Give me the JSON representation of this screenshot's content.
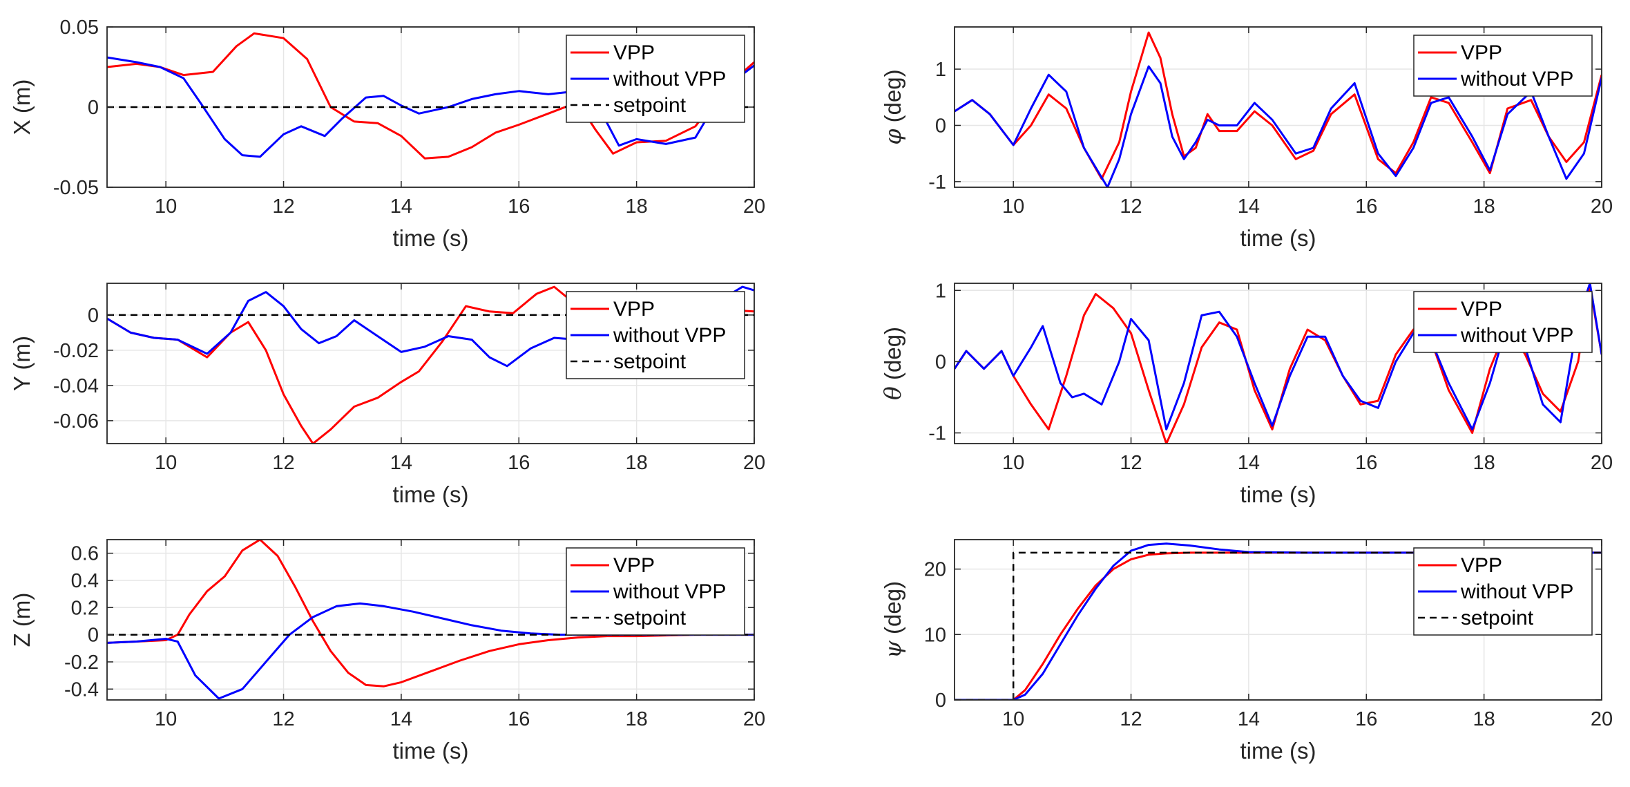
{
  "chart_data": [
    {
      "id": "x",
      "type": "line",
      "ylabel": "X (m)",
      "ylabel_symbol": "",
      "ylabel_unit": "",
      "xlabel": "time (s)",
      "xlim": [
        9,
        20
      ],
      "ylim": [
        -0.05,
        0.05
      ],
      "xticks": [
        10,
        12,
        14,
        16,
        18,
        20
      ],
      "xtick_labels": [
        "10",
        "12",
        "14",
        "16",
        "18",
        "20"
      ],
      "yticks": [
        -0.05,
        0,
        0.05
      ],
      "ytick_labels": [
        "-0.05",
        "0",
        "0.05"
      ],
      "legend": [
        "VPP",
        "without VPP",
        "setpoint"
      ],
      "series": [
        {
          "name": "VPP",
          "color": "#ff0000",
          "x": [
            9,
            9.5,
            9.9,
            10.3,
            10.8,
            11.2,
            11.5,
            12.0,
            12.4,
            12.8,
            13.2,
            13.6,
            14.0,
            14.4,
            14.8,
            15.2,
            15.6,
            16.0,
            16.5,
            17.0,
            17.3,
            17.6,
            18.0,
            18.5,
            19.0,
            19.5,
            20.0
          ],
          "y": [
            0.025,
            0.027,
            0.025,
            0.02,
            0.022,
            0.038,
            0.046,
            0.043,
            0.03,
            0.0,
            -0.009,
            -0.01,
            -0.018,
            -0.032,
            -0.031,
            -0.025,
            -0.016,
            -0.011,
            -0.004,
            0.003,
            -0.014,
            -0.029,
            -0.022,
            -0.021,
            -0.012,
            0.012,
            0.028
          ]
        },
        {
          "name": "without VPP",
          "color": "#0000ff",
          "x": [
            9,
            9.5,
            9.9,
            10.3,
            10.6,
            11.0,
            11.3,
            11.6,
            12.0,
            12.3,
            12.7,
            13.0,
            13.4,
            13.7,
            14.0,
            14.3,
            14.8,
            15.2,
            15.6,
            16.0,
            16.5,
            17.0,
            17.4,
            17.7,
            18.0,
            18.5,
            19.0,
            19.5,
            20.0
          ],
          "y": [
            0.031,
            0.028,
            0.025,
            0.018,
            0.002,
            -0.02,
            -0.03,
            -0.031,
            -0.017,
            -0.012,
            -0.018,
            -0.007,
            0.006,
            0.007,
            0.001,
            -0.004,
            0.0,
            0.005,
            0.008,
            0.01,
            0.008,
            0.01,
            -0.003,
            -0.024,
            -0.02,
            -0.023,
            -0.019,
            0.012,
            0.026
          ]
        },
        {
          "name": "setpoint",
          "color": "#000000",
          "dash": true,
          "x": [
            9,
            20
          ],
          "y": [
            0,
            0
          ]
        }
      ]
    },
    {
      "id": "phi",
      "type": "line",
      "ylabel": "",
      "ylabel_symbol": "φ",
      "ylabel_unit": " (deg)",
      "xlabel": "time (s)",
      "xlim": [
        9,
        20
      ],
      "ylim": [
        -1.1,
        1.75
      ],
      "xticks": [
        10,
        12,
        14,
        16,
        18,
        20
      ],
      "xtick_labels": [
        "10",
        "12",
        "14",
        "16",
        "18",
        "20"
      ],
      "yticks": [
        -1,
        0,
        1
      ],
      "ytick_labels": [
        "-1",
        "0",
        "1"
      ],
      "legend": [
        "VPP",
        "without VPP"
      ],
      "series": [
        {
          "name": "VPP",
          "color": "#ff0000",
          "x": [
            9,
            9.3,
            9.6,
            10.0,
            10.3,
            10.6,
            10.9,
            11.2,
            11.5,
            11.8,
            12.0,
            12.3,
            12.5,
            12.7,
            12.9,
            13.1,
            13.3,
            13.5,
            13.8,
            14.1,
            14.4,
            14.8,
            15.1,
            15.4,
            15.8,
            16.2,
            16.5,
            16.8,
            17.1,
            17.4,
            17.8,
            18.1,
            18.4,
            18.8,
            19.1,
            19.4,
            19.7,
            20.0
          ],
          "y": [
            0.25,
            0.45,
            0.2,
            -0.35,
            0.0,
            0.55,
            0.3,
            -0.4,
            -0.95,
            -0.3,
            0.6,
            1.65,
            1.2,
            0.2,
            -0.55,
            -0.4,
            0.2,
            -0.1,
            -0.1,
            0.25,
            0.0,
            -0.6,
            -0.45,
            0.2,
            0.55,
            -0.6,
            -0.85,
            -0.3,
            0.5,
            0.4,
            -0.3,
            -0.85,
            0.3,
            0.45,
            -0.2,
            -0.65,
            -0.3,
            0.9
          ]
        },
        {
          "name": "without VPP",
          "color": "#0000ff",
          "x": [
            9,
            9.3,
            9.6,
            10.0,
            10.3,
            10.6,
            10.9,
            11.2,
            11.6,
            11.8,
            12.0,
            12.3,
            12.5,
            12.7,
            12.9,
            13.1,
            13.3,
            13.5,
            13.8,
            14.1,
            14.4,
            14.8,
            15.1,
            15.4,
            15.8,
            16.2,
            16.5,
            16.8,
            17.1,
            17.4,
            17.8,
            18.1,
            18.4,
            18.8,
            19.1,
            19.4,
            19.7,
            20.0
          ],
          "y": [
            0.25,
            0.45,
            0.2,
            -0.35,
            0.3,
            0.9,
            0.6,
            -0.4,
            -1.1,
            -0.6,
            0.2,
            1.05,
            0.75,
            -0.2,
            -0.6,
            -0.3,
            0.1,
            0.0,
            0.0,
            0.4,
            0.1,
            -0.5,
            -0.4,
            0.3,
            0.75,
            -0.5,
            -0.9,
            -0.4,
            0.4,
            0.5,
            -0.2,
            -0.8,
            0.2,
            0.6,
            -0.2,
            -0.95,
            -0.5,
            0.85
          ]
        }
      ]
    },
    {
      "id": "y",
      "type": "line",
      "ylabel": "Y (m)",
      "ylabel_symbol": "",
      "ylabel_unit": "",
      "xlabel": "time (s)",
      "xlim": [
        9,
        20
      ],
      "ylim": [
        -0.073,
        0.018
      ],
      "xticks": [
        10,
        12,
        14,
        16,
        18,
        20
      ],
      "xtick_labels": [
        "10",
        "12",
        "14",
        "16",
        "18",
        "20"
      ],
      "yticks": [
        -0.06,
        -0.04,
        -0.02,
        0
      ],
      "ytick_labels": [
        "-0.06",
        "-0.04",
        "-0.02",
        "0"
      ],
      "legend": [
        "VPP",
        "without VPP",
        "setpoint"
      ],
      "series": [
        {
          "name": "VPP",
          "color": "#ff0000",
          "x": [
            9,
            9.4,
            9.8,
            10.2,
            10.7,
            11.1,
            11.4,
            11.7,
            12.0,
            12.3,
            12.5,
            12.8,
            13.2,
            13.6,
            14.0,
            14.3,
            14.7,
            15.1,
            15.5,
            15.9,
            16.3,
            16.6,
            17.0,
            17.5,
            18.0,
            18.5,
            19.0,
            19.5,
            20.0
          ],
          "y": [
            -0.002,
            -0.01,
            -0.013,
            -0.014,
            -0.024,
            -0.01,
            -0.004,
            -0.02,
            -0.045,
            -0.063,
            -0.073,
            -0.065,
            -0.052,
            -0.047,
            -0.038,
            -0.032,
            -0.015,
            0.005,
            0.002,
            0.001,
            0.012,
            0.016,
            0.005,
            0.008,
            0.006,
            0.005,
            0.004,
            0.003,
            0.002
          ]
        },
        {
          "name": "without VPP",
          "color": "#0000ff",
          "x": [
            9,
            9.4,
            9.8,
            10.2,
            10.7,
            11.1,
            11.4,
            11.7,
            12.0,
            12.3,
            12.6,
            12.9,
            13.2,
            13.6,
            14.0,
            14.4,
            14.8,
            15.2,
            15.5,
            15.8,
            16.2,
            16.6,
            17.0,
            17.5,
            18.0,
            18.5,
            19.0,
            19.5,
            19.8,
            20.0
          ],
          "y": [
            -0.002,
            -0.01,
            -0.013,
            -0.014,
            -0.022,
            -0.01,
            0.008,
            0.013,
            0.005,
            -0.008,
            -0.016,
            -0.012,
            -0.003,
            -0.012,
            -0.021,
            -0.018,
            -0.012,
            -0.014,
            -0.024,
            -0.029,
            -0.019,
            -0.013,
            -0.014,
            -0.015,
            -0.01,
            -0.005,
            0.002,
            0.01,
            0.016,
            0.014
          ]
        },
        {
          "name": "setpoint",
          "color": "#000000",
          "dash": true,
          "x": [
            9,
            20
          ],
          "y": [
            0,
            0
          ]
        }
      ]
    },
    {
      "id": "theta",
      "type": "line",
      "ylabel": "",
      "ylabel_symbol": "θ",
      "ylabel_unit": " (deg)",
      "xlabel": "time (s)",
      "xlim": [
        9,
        20
      ],
      "ylim": [
        -1.15,
        1.1
      ],
      "xticks": [
        10,
        12,
        14,
        16,
        18,
        20
      ],
      "xtick_labels": [
        "10",
        "12",
        "14",
        "16",
        "18",
        "20"
      ],
      "yticks": [
        -1,
        0,
        1
      ],
      "ytick_labels": [
        "-1",
        "0",
        "1"
      ],
      "legend": [
        "VPP",
        "without VPP"
      ],
      "series": [
        {
          "name": "VPP",
          "color": "#ff0000",
          "x": [
            9,
            9.2,
            9.5,
            9.8,
            10.0,
            10.3,
            10.6,
            10.9,
            11.2,
            11.4,
            11.7,
            12.0,
            12.3,
            12.6,
            12.9,
            13.2,
            13.5,
            13.8,
            14.1,
            14.4,
            14.7,
            15.0,
            15.3,
            15.6,
            15.9,
            16.2,
            16.5,
            16.8,
            17.1,
            17.4,
            17.8,
            18.1,
            18.4,
            18.7,
            19.0,
            19.3,
            19.6,
            19.8,
            20.0
          ],
          "y": [
            -0.1,
            0.15,
            -0.1,
            0.15,
            -0.2,
            -0.6,
            -0.95,
            -0.2,
            0.65,
            0.95,
            0.75,
            0.4,
            -0.4,
            -1.15,
            -0.6,
            0.2,
            0.55,
            0.45,
            -0.4,
            -0.95,
            -0.1,
            0.45,
            0.3,
            -0.2,
            -0.6,
            -0.55,
            0.1,
            0.45,
            0.3,
            -0.4,
            -1.0,
            -0.1,
            0.5,
            0.1,
            -0.45,
            -0.7,
            0.0,
            1.05,
            0.1
          ]
        },
        {
          "name": "without VPP",
          "color": "#0000ff",
          "x": [
            9,
            9.2,
            9.5,
            9.8,
            10.0,
            10.3,
            10.5,
            10.8,
            11.0,
            11.2,
            11.5,
            11.8,
            12.0,
            12.3,
            12.6,
            12.9,
            13.2,
            13.5,
            13.8,
            14.1,
            14.4,
            14.7,
            15.0,
            15.3,
            15.6,
            15.9,
            16.2,
            16.5,
            16.8,
            17.1,
            17.4,
            17.8,
            18.1,
            18.4,
            18.7,
            19.0,
            19.3,
            19.6,
            19.8,
            20.0
          ],
          "y": [
            -0.1,
            0.15,
            -0.1,
            0.15,
            -0.2,
            0.2,
            0.5,
            -0.3,
            -0.5,
            -0.45,
            -0.6,
            0.0,
            0.6,
            0.3,
            -0.95,
            -0.3,
            0.65,
            0.7,
            0.35,
            -0.3,
            -0.9,
            -0.2,
            0.35,
            0.35,
            -0.2,
            -0.55,
            -0.65,
            0.0,
            0.4,
            0.3,
            -0.3,
            -0.95,
            -0.3,
            0.55,
            0.2,
            -0.6,
            -0.85,
            0.6,
            1.1,
            0.1
          ]
        }
      ]
    },
    {
      "id": "z",
      "type": "line",
      "ylabel": "Z (m)",
      "ylabel_symbol": "",
      "ylabel_unit": "",
      "xlabel": "time (s)",
      "xlim": [
        9,
        20
      ],
      "ylim": [
        -0.48,
        0.7
      ],
      "xticks": [
        10,
        12,
        14,
        16,
        18,
        20
      ],
      "xtick_labels": [
        "10",
        "12",
        "14",
        "16",
        "18",
        "20"
      ],
      "yticks": [
        -0.4,
        -0.2,
        0,
        0.2,
        0.4,
        0.6
      ],
      "ytick_labels": [
        "-0.4",
        "-0.2",
        "0",
        "0.2",
        "0.4",
        "0.6"
      ],
      "legend": [
        "VPP",
        "without VPP",
        "setpoint"
      ],
      "series": [
        {
          "name": "VPP",
          "color": "#ff0000",
          "x": [
            9,
            9.5,
            10.0,
            10.2,
            10.4,
            10.7,
            11.0,
            11.3,
            11.6,
            11.9,
            12.2,
            12.5,
            12.8,
            13.1,
            13.4,
            13.7,
            14.0,
            14.5,
            15.0,
            15.5,
            16.0,
            16.5,
            17.0,
            17.5,
            18.0,
            19.0,
            20.0
          ],
          "y": [
            -0.06,
            -0.05,
            -0.04,
            0.0,
            0.15,
            0.32,
            0.43,
            0.62,
            0.7,
            0.58,
            0.35,
            0.1,
            -0.12,
            -0.28,
            -0.37,
            -0.38,
            -0.35,
            -0.27,
            -0.19,
            -0.12,
            -0.07,
            -0.04,
            -0.02,
            -0.01,
            -0.01,
            0.0,
            0.0
          ]
        },
        {
          "name": "without VPP",
          "color": "#0000ff",
          "x": [
            9,
            9.5,
            10.0,
            10.2,
            10.5,
            10.9,
            11.3,
            11.7,
            12.1,
            12.5,
            12.9,
            13.3,
            13.7,
            14.2,
            14.7,
            15.2,
            15.7,
            16.2,
            16.7,
            17.2,
            18.0,
            19.0,
            20.0
          ],
          "y": [
            -0.06,
            -0.05,
            -0.03,
            -0.05,
            -0.3,
            -0.47,
            -0.4,
            -0.2,
            0.0,
            0.13,
            0.21,
            0.23,
            0.21,
            0.17,
            0.12,
            0.07,
            0.03,
            0.01,
            0.0,
            0.0,
            0.0,
            0.0,
            0.0
          ]
        },
        {
          "name": "setpoint",
          "color": "#000000",
          "dash": true,
          "x": [
            9,
            20
          ],
          "y": [
            0,
            0
          ]
        }
      ]
    },
    {
      "id": "psi",
      "type": "line",
      "ylabel": "",
      "ylabel_symbol": "ψ",
      "ylabel_unit": " (deg)",
      "xlabel": "time (s)",
      "xlim": [
        9,
        20
      ],
      "ylim": [
        0,
        24.5
      ],
      "xticks": [
        10,
        12,
        14,
        16,
        18,
        20
      ],
      "xtick_labels": [
        "10",
        "12",
        "14",
        "16",
        "18",
        "20"
      ],
      "yticks": [
        0,
        10,
        20
      ],
      "ytick_labels": [
        "0",
        "10",
        "20"
      ],
      "legend": [
        "VPP",
        "without VPP",
        "setpoint"
      ],
      "series": [
        {
          "name": "VPP",
          "color": "#ff0000",
          "x": [
            9,
            9.8,
            10.0,
            10.2,
            10.5,
            10.8,
            11.1,
            11.4,
            11.7,
            12.0,
            12.3,
            12.6,
            13.0,
            14.0,
            16.0,
            20.0
          ],
          "y": [
            0,
            0,
            0,
            1.5,
            5.5,
            10.0,
            14.0,
            17.5,
            20.0,
            21.5,
            22.2,
            22.4,
            22.5,
            22.5,
            22.5,
            22.5
          ]
        },
        {
          "name": "without VPP",
          "color": "#0000ff",
          "x": [
            9,
            9.9,
            10.0,
            10.2,
            10.5,
            10.8,
            11.1,
            11.4,
            11.7,
            12.0,
            12.3,
            12.6,
            13.0,
            13.5,
            14.0,
            15.0,
            16.0,
            20.0
          ],
          "y": [
            0,
            0,
            0,
            0.8,
            4.0,
            8.5,
            13.0,
            17.0,
            20.5,
            22.8,
            23.7,
            23.9,
            23.6,
            23.0,
            22.6,
            22.5,
            22.5,
            22.5
          ]
        },
        {
          "name": "setpoint",
          "color": "#000000",
          "dash": true,
          "x": [
            9,
            10.0,
            10.0,
            20.0
          ],
          "y": [
            0,
            0,
            22.5,
            22.5
          ]
        }
      ]
    }
  ]
}
